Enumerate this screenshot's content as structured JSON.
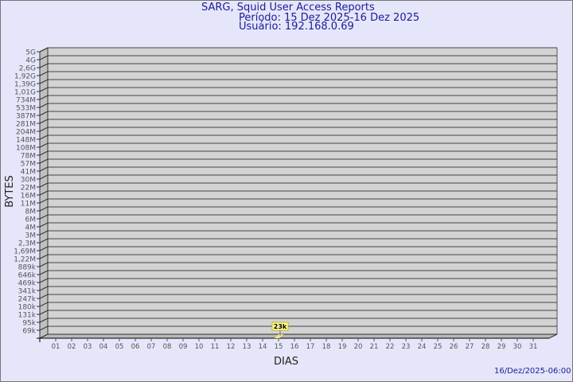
{
  "header": {
    "title": "SARG, Squid User Access Reports",
    "period": "Período: 15 Dez 2025-16 Dez 2025",
    "user": "Usuário: 192.168.0.69"
  },
  "footer": {
    "timestamp": "16/Dez/2025-06:00"
  },
  "chart_data": {
    "type": "bar",
    "xlabel": "DIAS",
    "ylabel": "BYTES",
    "categories": [
      "01",
      "02",
      "03",
      "04",
      "05",
      "06",
      "07",
      "08",
      "09",
      "10",
      "11",
      "12",
      "13",
      "14",
      "15",
      "16",
      "17",
      "18",
      "19",
      "20",
      "21",
      "22",
      "23",
      "24",
      "25",
      "26",
      "27",
      "28",
      "29",
      "30",
      "31"
    ],
    "y_tick_labels": [
      "5G",
      "4G",
      "2,6G",
      "1,92G",
      "1,39G",
      "1,01G",
      "734M",
      "533M",
      "387M",
      "281M",
      "204M",
      "148M",
      "108M",
      "78M",
      "57M",
      "41M",
      "30M",
      "22M",
      "16M",
      "11M",
      "8M",
      "6M",
      "4M",
      "3M",
      "2,3M",
      "1,69M",
      "1,22M",
      "889k",
      "646k",
      "469k",
      "341k",
      "247k",
      "180k",
      "131k",
      "95k",
      "69k"
    ],
    "y_scale": "log",
    "grid": true,
    "series": [
      {
        "values": [
          {
            "category": "15",
            "value": 23000,
            "label": "23k"
          }
        ]
      }
    ],
    "colors": {
      "plot": "#d3d3d3",
      "bar": "#ffe680",
      "label_bg": "#ffffa0",
      "label_border": "#c8b400",
      "text": "#1a1a9a"
    }
  }
}
